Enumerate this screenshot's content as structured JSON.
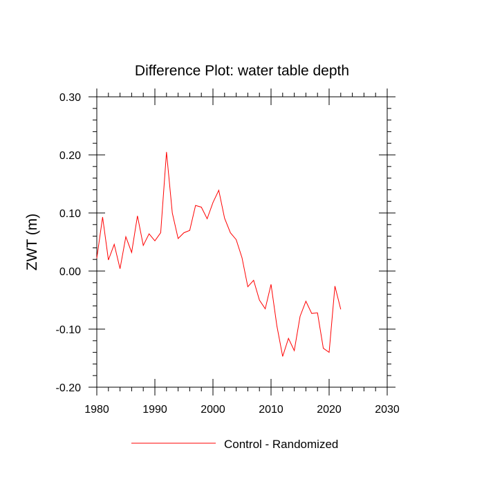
{
  "chart_data": {
    "type": "line",
    "title": "Difference Plot: water table depth",
    "xlabel": "",
    "ylabel": "ZWT  (m)",
    "xlim": [
      1980,
      2030
    ],
    "ylim": [
      -0.2,
      0.3
    ],
    "x_ticks": [
      1980,
      1990,
      2000,
      2010,
      2020,
      2030
    ],
    "x_tick_labels": [
      "1980",
      "1990",
      "2000",
      "2010",
      "2020",
      "2030"
    ],
    "y_ticks": [
      -0.2,
      -0.1,
      0.0,
      0.1,
      0.2,
      0.3
    ],
    "y_tick_labels": [
      "-0.20",
      "-0.10",
      "0.00",
      "0.10",
      "0.20",
      "0.30"
    ],
    "grid": false,
    "legend_position": "bottom-center",
    "series": [
      {
        "name": "Control - Randomized",
        "color": "#ff0000",
        "x": [
          1980,
          1981,
          1982,
          1983,
          1984,
          1985,
          1986,
          1987,
          1988,
          1989,
          1990,
          1991,
          1992,
          1993,
          1994,
          1995,
          1996,
          1997,
          1998,
          1999,
          2000,
          2001,
          2002,
          2003,
          2004,
          2005,
          2006,
          2007,
          2008,
          2009,
          2010,
          2011,
          2012,
          2013,
          2014,
          2015,
          2016,
          2017,
          2018,
          2019,
          2020,
          2021,
          2022
        ],
        "y": [
          0.022,
          0.093,
          0.019,
          0.046,
          0.004,
          0.059,
          0.032,
          0.095,
          0.044,
          0.064,
          0.052,
          0.066,
          0.205,
          0.1,
          0.056,
          0.066,
          0.07,
          0.113,
          0.11,
          0.09,
          0.118,
          0.139,
          0.091,
          0.066,
          0.054,
          0.023,
          -0.027,
          -0.016,
          -0.05,
          -0.065,
          -0.023,
          -0.094,
          -0.147,
          -0.116,
          -0.137,
          -0.078,
          -0.052,
          -0.073,
          -0.072,
          -0.133,
          -0.14,
          -0.026,
          -0.066
        ]
      }
    ]
  }
}
